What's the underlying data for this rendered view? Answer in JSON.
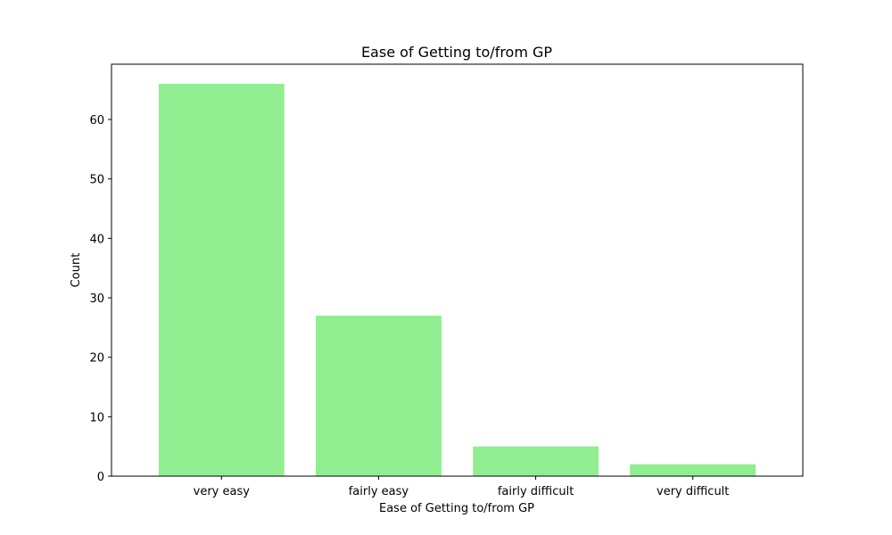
{
  "chart_data": {
    "type": "bar",
    "title": "Ease of Getting to/from GP",
    "xlabel": "Ease of Getting to/from GP",
    "ylabel": "Count",
    "categories": [
      "very easy",
      "fairly easy",
      "fairly difficult",
      "very difficult"
    ],
    "values": [
      66,
      27,
      5,
      2
    ],
    "ylim": [
      0,
      69.3
    ],
    "yticks": [
      0,
      10,
      20,
      30,
      40,
      50,
      60
    ],
    "bar_color": "#90EE90",
    "grid": false
  }
}
